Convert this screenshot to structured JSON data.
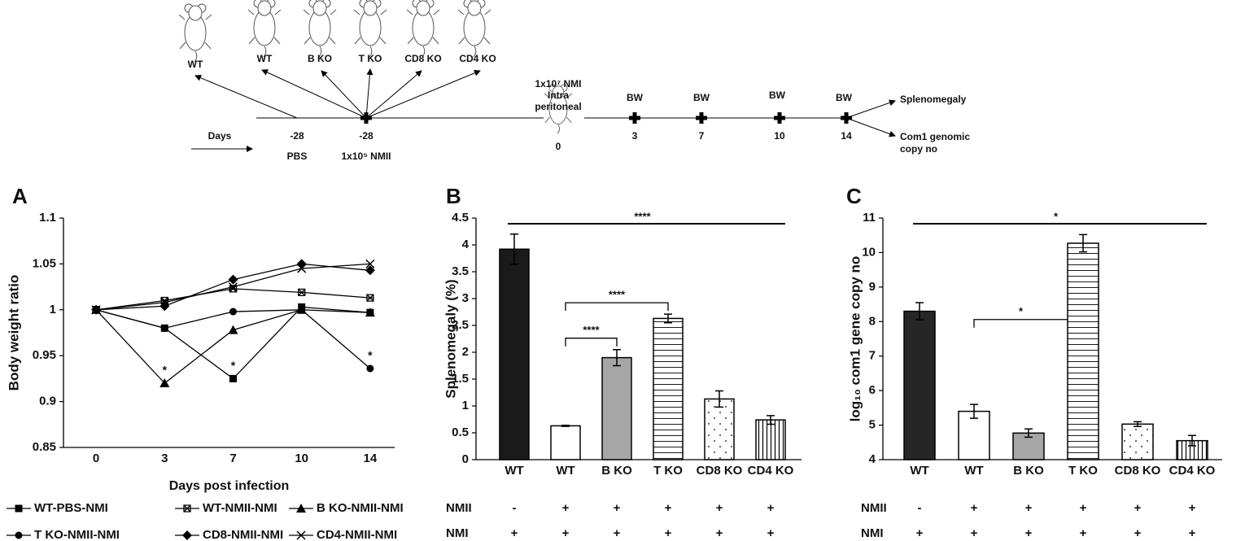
{
  "timeline": {
    "days_label": "Days",
    "pbs_mouse": "WT",
    "nmii_mice": [
      "WT",
      "B KO",
      "T KO",
      "CD8 KO",
      "CD4 KO"
    ],
    "pbs_day": "-28",
    "pbs_label": "PBS",
    "nmii_day": "-28",
    "nmii_label": "1x10⁵ NMII",
    "challenge_lines": [
      "1x10⁷ NMI",
      "Intra",
      "peritoneal"
    ],
    "challenge_day": "0",
    "weighings": [
      {
        "label": "BW",
        "day": "3"
      },
      {
        "label": "BW",
        "day": "7"
      },
      {
        "label": "BW",
        "day": "10"
      },
      {
        "label": "BW",
        "day": "14"
      }
    ],
    "outcome_1": "Splenomegaly",
    "outcome_2": [
      "Com1 genomic",
      "copy no"
    ]
  },
  "chart_data": [
    {
      "type": "line",
      "panel": "A",
      "xlabel": "Days post infection",
      "ylabel": "Body weight ratio",
      "categories": [
        "0",
        "3",
        "7",
        "10",
        "14"
      ],
      "ylim": [
        0.85,
        1.1
      ],
      "yticks": [
        0.85,
        0.9,
        0.95,
        1,
        1.05,
        1.1
      ],
      "series": [
        {
          "name": "WT-PBS-NMI",
          "color": "#000000",
          "marker": "square",
          "values": [
            1,
            0.98,
            0.925,
            1.003,
            0.997
          ]
        },
        {
          "name": "WT-NMII-NMI",
          "color": "#000000",
          "marker": "square-x",
          "values": [
            1,
            1.01,
            1.023,
            1.019,
            1.013
          ]
        },
        {
          "name": "B KO-NMII-NMI",
          "color": "#000000",
          "marker": "triangle",
          "values": [
            1,
            0.92,
            0.978,
            1.0,
            0.997
          ]
        },
        {
          "name": "T KO-NMII-NMI",
          "color": "#000000",
          "marker": "circle",
          "values": [
            1,
            0.98,
            0.998,
            1.0,
            0.936
          ]
        },
        {
          "name": "CD8-NMII-NMI",
          "color": "#000000",
          "marker": "diamond",
          "values": [
            1,
            1.004,
            1.033,
            1.05,
            1.043
          ]
        },
        {
          "name": "CD4-NMII-NMI",
          "color": "#000000",
          "marker": "x",
          "values": [
            1,
            1.008,
            1.025,
            1.045,
            1.05
          ]
        }
      ],
      "annotations": [
        {
          "text": "*",
          "category": "3"
        },
        {
          "text": "*",
          "category": "7"
        },
        {
          "text": "*",
          "category": "14"
        }
      ]
    },
    {
      "type": "bar",
      "panel": "B",
      "ylabel": "Splenomegaly (%)",
      "categories": [
        "WT",
        "WT",
        "B KO",
        "T KO",
        "CD8 KO",
        "CD4 KO"
      ],
      "values": [
        3.92,
        0.63,
        1.9,
        2.63,
        1.13,
        0.74
      ],
      "errors": [
        0.28,
        0.01,
        0.15,
        0.08,
        0.15,
        0.08
      ],
      "colors": [
        "#1a1a1a",
        "#ffffff",
        "#a6a6a6",
        "#ffffff",
        "#ffffff",
        "#ffffff"
      ],
      "patterns": [
        "solid",
        "solid",
        "solid",
        "hlines",
        "dots",
        "vlines"
      ],
      "ylim": [
        0,
        4.5
      ],
      "yticks": [
        0,
        0.5,
        1,
        1.5,
        2,
        2.5,
        3,
        3.5,
        4,
        4.5
      ],
      "significance": [
        {
          "from": 0,
          "to": 5,
          "label": "****"
        },
        {
          "from": 1,
          "to": 3,
          "label": "****"
        },
        {
          "from": 1,
          "to": 2,
          "label": "****"
        }
      ],
      "treatment_rows": [
        {
          "name": "NMII",
          "values": [
            "-",
            "+",
            "+",
            "+",
            "+",
            "+"
          ]
        },
        {
          "name": "NMI",
          "values": [
            "+",
            "+",
            "+",
            "+",
            "+",
            "+"
          ]
        }
      ]
    },
    {
      "type": "bar",
      "panel": "C",
      "ylabel": "log₁₀ com1 gene  copy no",
      "categories": [
        "WT",
        "WT",
        "B KO",
        "T KO",
        "CD8 KO",
        "CD4 KO"
      ],
      "values": [
        8.3,
        5.4,
        4.77,
        10.27,
        5.03,
        4.55
      ],
      "errors": [
        0.25,
        0.2,
        0.12,
        0.25,
        0.07,
        0.15
      ],
      "colors": [
        "#262626",
        "#ffffff",
        "#a6a6a6",
        "#ffffff",
        "#ffffff",
        "#ffffff"
      ],
      "patterns": [
        "solid",
        "solid",
        "solid",
        "hlines",
        "dots",
        "vlines"
      ],
      "ylim": [
        4,
        11
      ],
      "yticks": [
        4,
        5,
        6,
        7,
        8,
        9,
        10,
        11
      ],
      "significance": [
        {
          "from": 0,
          "to": 5,
          "label": "*"
        },
        {
          "from": 1,
          "to": 3,
          "label": "*"
        }
      ],
      "treatment_rows": [
        {
          "name": "NMII",
          "values": [
            "-",
            "+",
            "+",
            "+",
            "+",
            "+"
          ]
        },
        {
          "name": "NMI",
          "values": [
            "+",
            "+",
            "+",
            "+",
            "+",
            "+"
          ]
        }
      ]
    }
  ]
}
